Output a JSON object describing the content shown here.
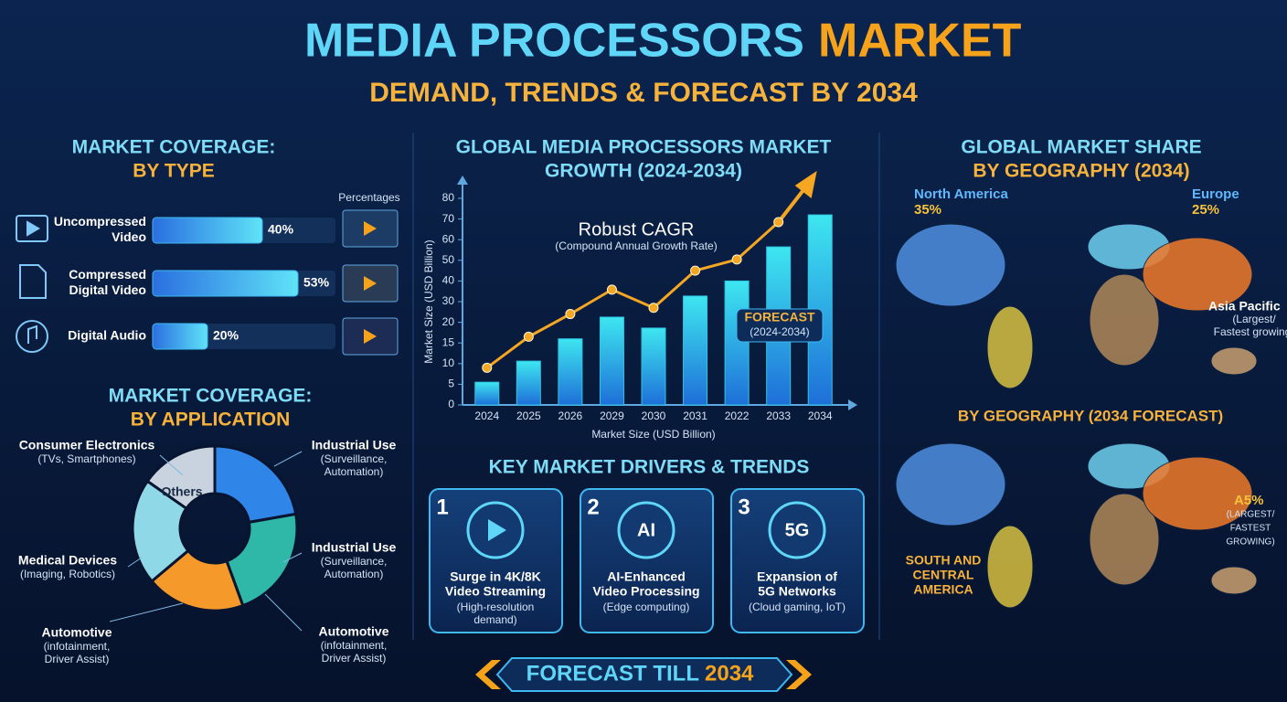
{
  "header": {
    "title": "MEDIA PROCESSORS",
    "title_accent": "MARKET",
    "subtitle": "DEMAND, TRENDS & FORECAST BY 2034"
  },
  "type_section": {
    "title": [
      "MARKET COVERAGE:",
      "BY TYPE"
    ],
    "note": "Percentages"
  },
  "application": {
    "title": [
      "MARKET COVERAGE:",
      "BY APPLICATION"
    ],
    "center": "Others",
    "labels": [
      {
        "name": "Consumer Electronics",
        "detail": [
          "(TVs, Smartphones)"
        ]
      },
      {
        "name": "Industrial Use",
        "detail": [
          "(Surveillance,",
          "Automation)"
        ]
      },
      {
        "name": "Medical Devices",
        "detail": [
          "(Imaging, Robotics)"
        ]
      },
      {
        "name": "Industrial Use",
        "detail": [
          "(Surveillance,",
          "Automation)"
        ]
      },
      {
        "name": "Automotive",
        "detail": [
          "(infotainment,",
          "Driver Assist)"
        ]
      },
      {
        "name": "Automotive",
        "detail": [
          "(infotainment,",
          "Driver Assist)"
        ]
      }
    ]
  },
  "chart_data": [
    {
      "type": "hbar",
      "categories": [
        [
          "Uncompressed",
          "Video"
        ],
        [
          "Compressed",
          "Digital Video"
        ],
        [
          "Digital Audio"
        ]
      ],
      "values": [
        40,
        53,
        20
      ],
      "value_labels": [
        "40%",
        "53%",
        "20%"
      ],
      "color": "#3fb8f0"
    },
    {
      "type": "bar",
      "title": [
        "GLOBAL MEDIA PROCESSORS MARKET",
        "GROWTH (2024-2034)"
      ],
      "categories": [
        "2024",
        "2025",
        "2026",
        "2029",
        "2030",
        "2031",
        "2022",
        "2033",
        "2034"
      ],
      "series": [
        {
          "color": "#2cc6e6",
          "values": [
            5.5,
            10.6,
            16,
            22.5,
            18.6,
            32.7,
            40,
            56.5,
            72
          ]
        },
        {
          "type": "line",
          "color": "#f5a623",
          "values": [
            9,
            16.5,
            24,
            35.8,
            27,
            45,
            50.4,
            68.5,
            null
          ]
        }
      ],
      "ylim": [
        0,
        80
      ],
      "yticks": [
        0,
        5,
        10,
        15,
        20,
        30,
        40,
        50,
        60,
        70,
        80
      ],
      "xlabel": "Market Size (USD Billion)",
      "ylabel": "Market Size (USD Billion)",
      "annotations": {
        "headline": "Robust CAGR",
        "subline": "(Compound Annual Growth Rate)",
        "forecast": [
          "FORECAST",
          "(2024-2034)"
        ]
      }
    }
  ],
  "drivers": {
    "title": "KEY MARKET DRIVERS & TRENDS",
    "cards": [
      {
        "number": "1",
        "heading": [
          "Surge in 4K/8K",
          "Video Streaming"
        ],
        "detail": [
          "(High-resolution",
          "demand)"
        ]
      },
      {
        "number": "2",
        "icon": "AI",
        "heading": [
          "AI-Enhanced",
          "Video Processing"
        ],
        "detail": [
          "(Edge computing)"
        ]
      },
      {
        "number": "3",
        "icon": "5G",
        "heading": [
          "Expansion of",
          "5G Networks"
        ],
        "detail": [
          "(Cloud gaming, IoT)"
        ]
      }
    ]
  },
  "geography": {
    "title": [
      "GLOBAL MARKET SHARE",
      "BY GEOGRAPHY (2034)"
    ],
    "regions": [
      {
        "name": "North America",
        "share": "35%"
      },
      {
        "name": "Europe",
        "share": "25%"
      },
      {
        "name": "Asia Pacific",
        "note": [
          "(Largest/",
          "Fastest growing)"
        ]
      }
    ],
    "forecast": {
      "title": "BY GEOGRAPHY (2034 FORECAST)",
      "asia_share": "A5%",
      "asia_note": [
        "(LARGEST/",
        "FASTEST",
        "GROWING)"
      ],
      "latam": [
        "SOUTH AND",
        "CENTRAL",
        "AMERICA"
      ]
    }
  },
  "footer": {
    "label": "FORECAST TILL",
    "year": "2034"
  }
}
